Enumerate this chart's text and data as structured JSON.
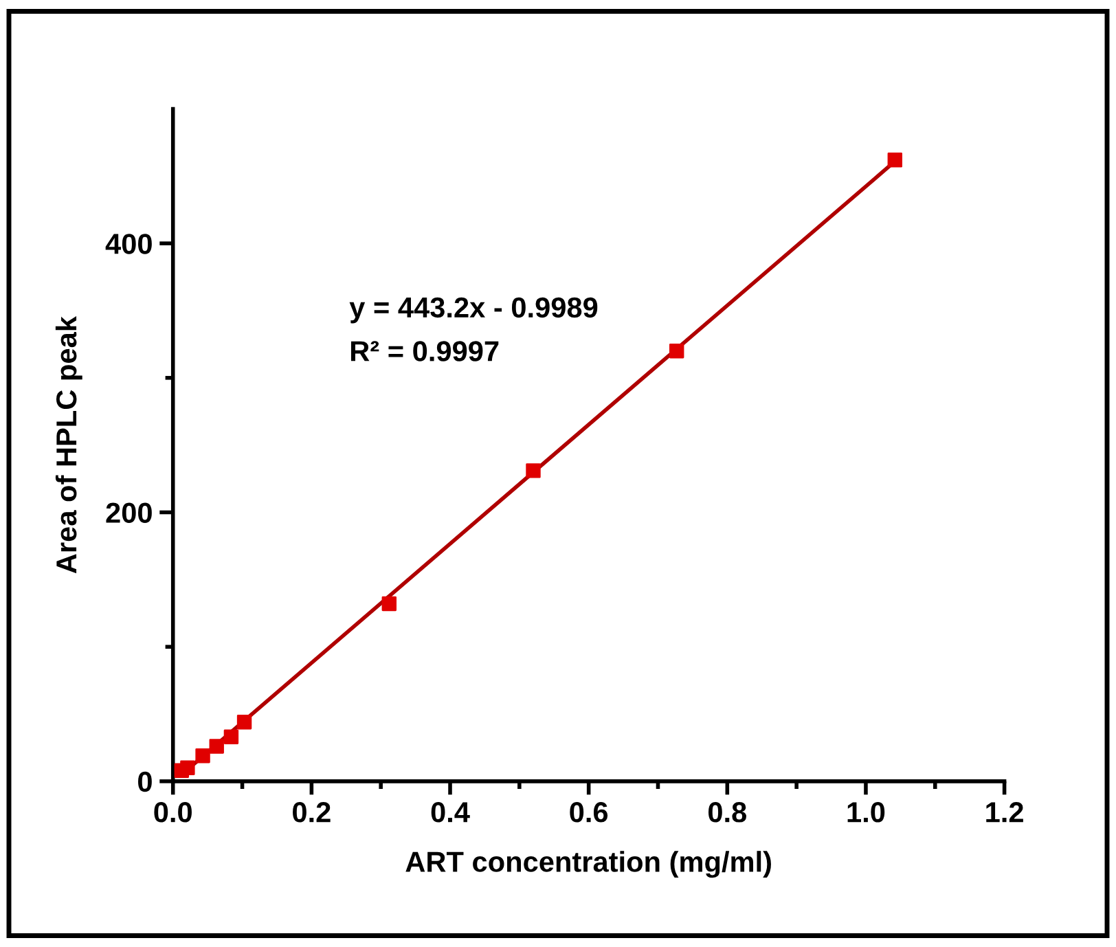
{
  "chart_data": {
    "type": "scatter",
    "xlabel": "ART concentration (mg/ml)",
    "ylabel": "Area of HPLC peak",
    "annotations": [
      "y = 443.2x - 0.9989",
      "R² = 0.9997"
    ],
    "x": [
      0.0125,
      0.021,
      0.043,
      0.063,
      0.084,
      0.103,
      0.312,
      0.52,
      0.727,
      1.042
    ],
    "series": [
      {
        "color": "#e00000",
        "marker": "square",
        "values": [
          8,
          10,
          19,
          26,
          33,
          44,
          132,
          231,
          320,
          462
        ]
      },
      {
        "type": "line",
        "color": "#b00000",
        "line_style": "solid",
        "x": [
          0.0125,
          1.042
        ],
        "values": [
          5,
          461
        ]
      }
    ],
    "xlim": [
      0,
      1.2
    ],
    "ylim": [
      0,
      500
    ],
    "xticks": [
      {
        "value": 0,
        "label": "0.0"
      },
      {
        "value": 0.1,
        "label": null
      },
      {
        "value": 0.2,
        "label": "0.2"
      },
      {
        "value": 0.3,
        "label": null
      },
      {
        "value": 0.4,
        "label": "0.4"
      },
      {
        "value": 0.5,
        "label": null
      },
      {
        "value": 0.6,
        "label": "0.6"
      },
      {
        "value": 0.7,
        "label": null
      },
      {
        "value": 0.8,
        "label": "0.8"
      },
      {
        "value": 0.9,
        "label": null
      },
      {
        "value": 1.0,
        "label": "1.0"
      },
      {
        "value": 1.1,
        "label": null
      },
      {
        "value": 1.2,
        "label": "1.2"
      }
    ],
    "yticks": [
      0,
      {
        "value": 100,
        "label": null
      },
      200,
      {
        "value": 300,
        "label": null
      },
      400
    ],
    "grid": false,
    "legend": false
  }
}
